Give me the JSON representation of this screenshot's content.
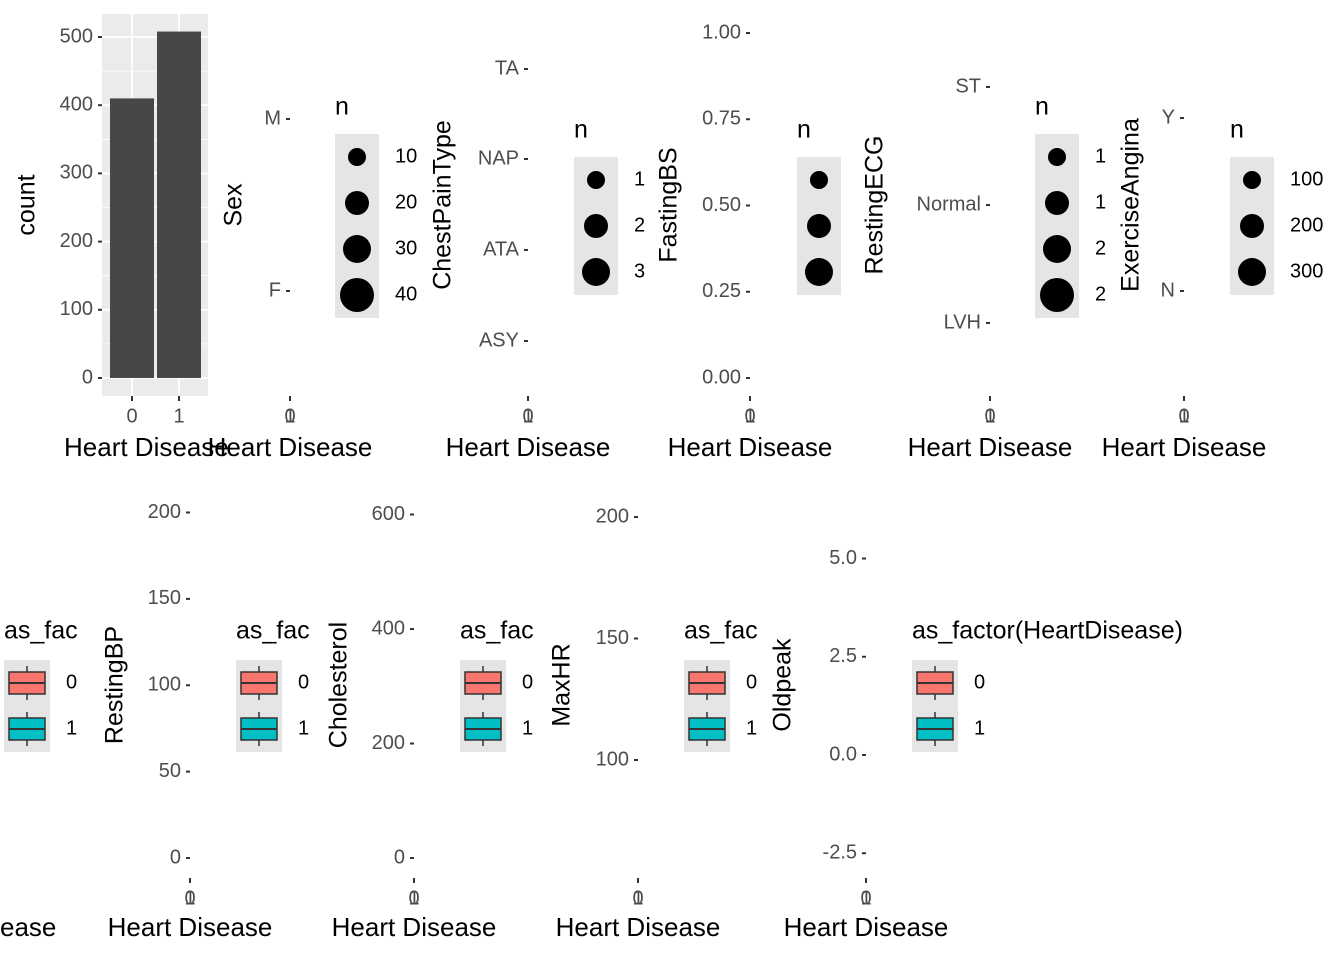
{
  "colors": {
    "panel_bg": "#EBEBEB",
    "grid": "#FFFFFF",
    "bar_fill": "#474747",
    "axis_text": "#4D4D4D",
    "title_text": "#000000",
    "legend_key_bg": "#E5E5E5",
    "box_group0": "#F8766D",
    "box_group1": "#00BFC4"
  },
  "chart_data": [
    {
      "type": "bar",
      "categories": [
        "0",
        "1"
      ],
      "values": [
        410,
        508
      ],
      "xlabel": "Heart Disease",
      "ylabel": "count",
      "ylim": [
        0,
        525
      ],
      "yticks": [
        "0",
        "100",
        "200",
        "300",
        "400",
        "500"
      ],
      "grid": true
    },
    {
      "type": "scatter",
      "xlabel": "Heart Disease",
      "ylabel": "Sex",
      "xticks": [
        "0",
        "1"
      ],
      "y_categories": [
        "M",
        "F"
      ],
      "legend_title": "n",
      "legend_labels": [
        "10",
        "20",
        "30",
        "40"
      ]
    },
    {
      "type": "scatter",
      "xlabel": "Heart Disease",
      "ylabel": "ChestPainType",
      "xticks": [
        "0",
        "1"
      ],
      "y_categories": [
        "TA",
        "NAP",
        "ATA",
        "ASY"
      ],
      "legend_title": "n",
      "legend_labels": [
        "1",
        "2",
        "3"
      ]
    },
    {
      "type": "scatter",
      "xlabel": "Heart Disease",
      "ylabel": "FastingBS",
      "xticks": [
        "0",
        "1"
      ],
      "yticks": [
        "1.00",
        "0.75",
        "0.50",
        "0.25",
        "0.00"
      ],
      "legend_title": "n",
      "legend_labels": [
        "",
        "",
        ""
      ]
    },
    {
      "type": "scatter",
      "xlabel": "Heart Disease",
      "ylabel": "RestingECG",
      "xticks": [
        "0",
        "1"
      ],
      "y_categories": [
        "ST",
        "Normal",
        "LVH"
      ],
      "legend_title": "n",
      "legend_labels": [
        "1",
        "1",
        "2",
        "2"
      ]
    },
    {
      "type": "scatter",
      "xlabel": "Heart Disease",
      "ylabel": "ExerciseAngina",
      "xticks": [
        "0",
        "1"
      ],
      "y_categories": [
        "Y",
        "N"
      ],
      "legend_title": "n",
      "legend_labels": [
        "100",
        "200",
        "300"
      ]
    },
    {
      "type": "box",
      "xlabel": "ease",
      "ylabel": "",
      "legend_title": "as_fac",
      "legend_labels": [
        "0",
        "1"
      ]
    },
    {
      "type": "box",
      "xlabel": "Heart Disease",
      "ylabel": "RestingBP",
      "xticks": [
        "0",
        "1"
      ],
      "yticks": [
        "200",
        "150",
        "100",
        "50",
        "0"
      ],
      "legend_title": "as_fac",
      "legend_labels": [
        "0",
        "1"
      ]
    },
    {
      "type": "box",
      "xlabel": "Heart Disease",
      "ylabel": "Cholesterol",
      "xticks": [
        "0",
        "1"
      ],
      "yticks": [
        "600",
        "400",
        "200",
        "0"
      ],
      "legend_title": "as_fac",
      "legend_labels": [
        "0",
        "1"
      ]
    },
    {
      "type": "box",
      "xlabel": "Heart Disease",
      "ylabel": "MaxHR",
      "xticks": [
        "0",
        "1"
      ],
      "yticks": [
        "200",
        "150",
        "100"
      ],
      "legend_title": "as_fac",
      "legend_labels": [
        "0",
        "1"
      ]
    },
    {
      "type": "box",
      "xlabel": "Heart Disease",
      "ylabel": "Oldpeak",
      "xticks": [
        "0",
        "1"
      ],
      "yticks": [
        "5.0",
        "2.5",
        "0.0",
        "-2.5"
      ],
      "legend_title": "as_factor(HeartDisease)",
      "legend_labels": [
        "0",
        "1"
      ]
    }
  ]
}
